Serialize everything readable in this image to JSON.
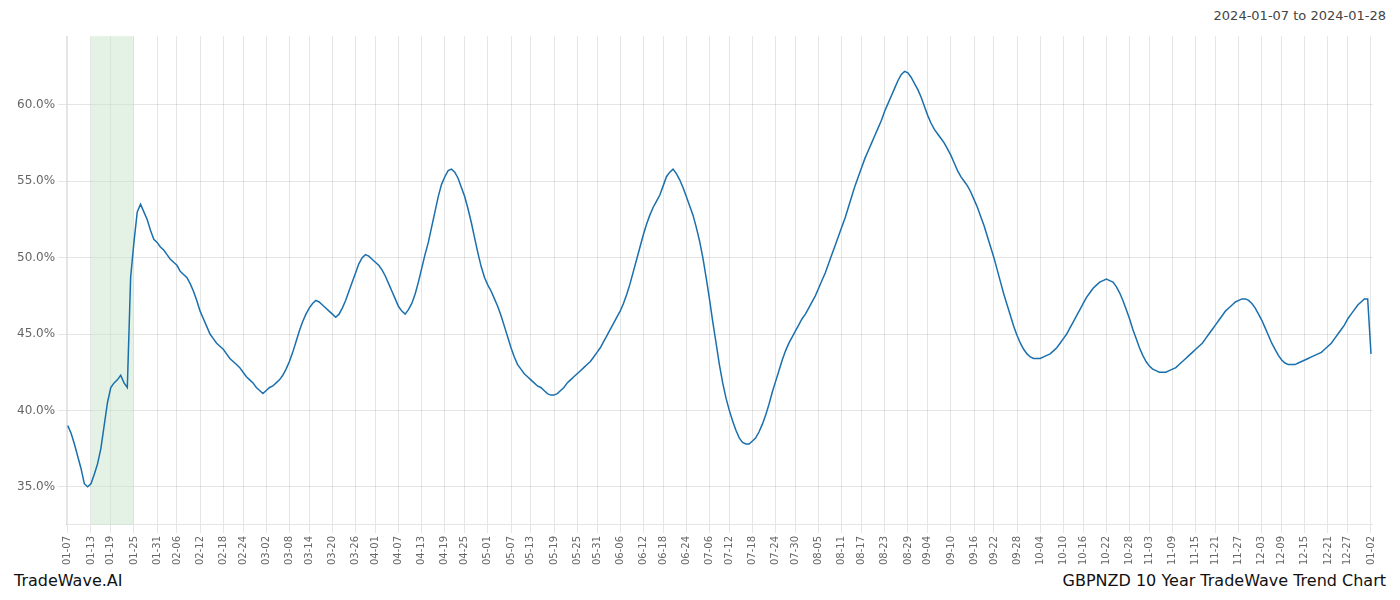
{
  "chart_data": {
    "type": "line",
    "title": "GBPNZD 10 Year TradeWave Trend Chart",
    "subtitle": "2024-01-07 to 2024-01-28",
    "annotations": [
      {
        "text": "TradeWave.AI"
      }
    ],
    "color": "#1a6fad",
    "grid": true,
    "shade": {
      "from": "01-13",
      "to": "01-25",
      "color": "#c8e6c9"
    },
    "ylim": [
      0.325,
      0.645
    ],
    "yticks": [
      {
        "value": 0.35,
        "label": "35.0%"
      },
      {
        "value": 0.4,
        "label": "40.0%"
      },
      {
        "value": 0.45,
        "label": "45.0%"
      },
      {
        "value": 0.5,
        "label": "50.0%"
      },
      {
        "value": 0.55,
        "label": "55.0%"
      },
      {
        "value": 0.6,
        "label": "60.0%"
      }
    ],
    "categories": [
      "01-07",
      null,
      null,
      null,
      null,
      null,
      null,
      "01-13",
      null,
      null,
      null,
      null,
      null,
      "01-19",
      null,
      null,
      null,
      null,
      null,
      null,
      "01-25",
      null,
      null,
      null,
      null,
      null,
      null,
      "01-31",
      null,
      null,
      null,
      null,
      null,
      "02-06",
      null,
      null,
      null,
      null,
      null,
      null,
      "02-12",
      null,
      null,
      null,
      null,
      null,
      null,
      "02-18",
      null,
      null,
      null,
      null,
      null,
      "02-24",
      null,
      null,
      null,
      null,
      null,
      null,
      "03-02",
      null,
      null,
      null,
      null,
      null,
      null,
      "03-08",
      null,
      null,
      null,
      null,
      null,
      "03-14",
      null,
      null,
      null,
      null,
      null,
      null,
      "03-20",
      null,
      null,
      null,
      null,
      null,
      null,
      "03-26",
      null,
      null,
      null,
      null,
      null,
      "04-01",
      null,
      null,
      null,
      null,
      null,
      null,
      "04-07",
      null,
      null,
      null,
      null,
      null,
      null,
      "04-13",
      null,
      null,
      null,
      null,
      null,
      null,
      "04-19",
      null,
      null,
      null,
      null,
      null,
      "04-25",
      null,
      null,
      null,
      null,
      null,
      null,
      "05-01",
      null,
      null,
      null,
      null,
      null,
      null,
      "05-07",
      null,
      null,
      null,
      null,
      null,
      "05-13",
      null,
      null,
      null,
      null,
      null,
      null,
      "05-19",
      null,
      null,
      null,
      null,
      null,
      null,
      "05-25",
      null,
      null,
      null,
      null,
      null,
      "05-31",
      null,
      null,
      null,
      null,
      null,
      null,
      "06-06",
      null,
      null,
      null,
      null,
      null,
      null,
      "06-12",
      null,
      null,
      null,
      null,
      null,
      "06-18",
      null,
      null,
      null,
      null,
      null,
      null,
      "06-24",
      null,
      null,
      null,
      null,
      null,
      null,
      "07-06",
      null,
      null,
      null,
      null,
      null,
      "07-12",
      null,
      null,
      null,
      null,
      null,
      null,
      "07-18",
      null,
      null,
      null,
      null,
      null,
      null,
      "07-24",
      null,
      null,
      null,
      null,
      null,
      "07-30",
      null,
      null,
      null,
      null,
      null,
      null,
      "08-05",
      null,
      null,
      null,
      null,
      null,
      null,
      "08-11",
      null,
      null,
      null,
      null,
      null,
      "08-17",
      null,
      null,
      null,
      null,
      null,
      null,
      "08-23",
      null,
      null,
      null,
      null,
      null,
      null,
      "08-29",
      null,
      null,
      null,
      null,
      null,
      "09-04",
      null,
      null,
      null,
      null,
      null,
      null,
      "09-10",
      null,
      null,
      null,
      null,
      null,
      null,
      "09-16",
      null,
      null,
      null,
      null,
      null,
      "09-22",
      null,
      null,
      null,
      null,
      null,
      null,
      "09-28",
      null,
      null,
      null,
      null,
      null,
      null,
      "10-04",
      null,
      null,
      null,
      null,
      null,
      null,
      "10-10",
      null,
      null,
      null,
      null,
      null,
      "10-16",
      null,
      null,
      null,
      null,
      null,
      null,
      "10-22",
      null,
      null,
      null,
      null,
      null,
      null,
      "10-28",
      null,
      null,
      null,
      null,
      null,
      "11-03",
      null,
      null,
      null,
      null,
      null,
      null,
      "11-09",
      null,
      null,
      null,
      null,
      null,
      null,
      "11-15",
      null,
      null,
      null,
      null,
      null,
      "11-21",
      null,
      null,
      null,
      null,
      null,
      null,
      "11-27",
      null,
      null,
      null,
      null,
      null,
      null,
      "12-03",
      null,
      null,
      null,
      null,
      null,
      "12-09",
      null,
      null,
      null,
      null,
      null,
      null,
      "12-15",
      null,
      null,
      null,
      null,
      null,
      null,
      "12-21",
      null,
      null,
      null,
      null,
      null,
      "12-27",
      null,
      null,
      null,
      null,
      null,
      null,
      "01-02"
    ],
    "values": [
      0.39,
      0.385,
      0.378,
      0.37,
      0.362,
      0.352,
      0.35,
      0.352,
      0.358,
      0.365,
      0.375,
      0.39,
      0.405,
      0.415,
      0.418,
      0.42,
      0.423,
      0.418,
      0.415,
      0.487,
      0.51,
      0.53,
      0.535,
      0.53,
      0.525,
      0.518,
      0.512,
      0.51,
      0.507,
      0.505,
      0.502,
      0.499,
      0.497,
      0.495,
      0.491,
      0.489,
      0.487,
      0.483,
      0.478,
      0.472,
      0.465,
      0.46,
      0.455,
      0.45,
      0.447,
      0.444,
      0.442,
      0.44,
      0.437,
      0.434,
      0.432,
      0.43,
      0.428,
      0.425,
      0.422,
      0.42,
      0.418,
      0.415,
      0.413,
      0.411,
      0.413,
      0.415,
      0.416,
      0.418,
      0.42,
      0.423,
      0.427,
      0.432,
      0.438,
      0.445,
      0.452,
      0.458,
      0.463,
      0.467,
      0.47,
      0.472,
      0.471,
      0.469,
      0.467,
      0.465,
      0.463,
      0.461,
      0.463,
      0.467,
      0.472,
      0.478,
      0.484,
      0.49,
      0.496,
      0.5,
      0.502,
      0.501,
      0.499,
      0.497,
      0.495,
      0.492,
      0.488,
      0.483,
      0.478,
      0.473,
      0.468,
      0.465,
      0.463,
      0.466,
      0.47,
      0.476,
      0.484,
      0.493,
      0.502,
      0.51,
      0.52,
      0.53,
      0.54,
      0.548,
      0.553,
      0.557,
      0.558,
      0.556,
      0.552,
      0.546,
      0.54,
      0.532,
      0.523,
      0.513,
      0.503,
      0.494,
      0.487,
      0.482,
      0.478,
      0.473,
      0.468,
      0.462,
      0.455,
      0.448,
      0.441,
      0.435,
      0.43,
      0.427,
      0.424,
      0.422,
      0.42,
      0.418,
      0.416,
      0.415,
      0.413,
      0.411,
      0.41,
      0.41,
      0.411,
      0.413,
      0.415,
      0.418,
      0.42,
      0.422,
      0.424,
      0.426,
      0.428,
      0.43,
      0.432,
      0.435,
      0.438,
      0.441,
      0.445,
      0.449,
      0.453,
      0.457,
      0.461,
      0.465,
      0.47,
      0.476,
      0.483,
      0.491,
      0.499,
      0.507,
      0.515,
      0.522,
      0.528,
      0.533,
      0.537,
      0.541,
      0.547,
      0.553,
      0.556,
      0.558,
      0.555,
      0.551,
      0.546,
      0.54,
      0.534,
      0.528,
      0.52,
      0.511,
      0.5,
      0.487,
      0.473,
      0.458,
      0.444,
      0.43,
      0.418,
      0.408,
      0.4,
      0.393,
      0.387,
      0.382,
      0.379,
      0.378,
      0.378,
      0.38,
      0.382,
      0.386,
      0.391,
      0.397,
      0.404,
      0.412,
      0.419,
      0.426,
      0.433,
      0.439,
      0.444,
      0.448,
      0.452,
      0.456,
      0.46,
      0.463,
      0.467,
      0.471,
      0.475,
      0.48,
      0.485,
      0.49,
      0.496,
      0.502,
      0.508,
      0.514,
      0.52,
      0.526,
      0.533,
      0.54,
      0.547,
      0.553,
      0.559,
      0.565,
      0.57,
      0.575,
      0.58,
      0.585,
      0.59,
      0.596,
      0.601,
      0.606,
      0.611,
      0.616,
      0.62,
      0.622,
      0.621,
      0.618,
      0.614,
      0.61,
      0.605,
      0.599,
      0.593,
      0.588,
      0.584,
      0.581,
      0.578,
      0.575,
      0.571,
      0.567,
      0.562,
      0.557,
      0.553,
      0.55,
      0.547,
      0.543,
      0.538,
      0.533,
      0.527,
      0.521,
      0.514,
      0.507,
      0.5,
      0.492,
      0.484,
      0.476,
      0.469,
      0.462,
      0.455,
      0.449,
      0.444,
      0.44,
      0.437,
      0.435,
      0.434,
      0.434,
      0.434,
      0.435,
      0.436,
      0.437,
      0.439,
      0.441,
      0.444,
      0.447,
      0.45,
      0.454,
      0.458,
      0.462,
      0.466,
      0.47,
      0.474,
      0.477,
      0.48,
      0.482,
      0.484,
      0.485,
      0.486,
      0.485,
      0.484,
      0.481,
      0.477,
      0.472,
      0.466,
      0.46,
      0.453,
      0.447,
      0.441,
      0.436,
      0.432,
      0.429,
      0.427,
      0.426,
      0.425,
      0.425,
      0.425,
      0.426,
      0.427,
      0.428,
      0.43,
      0.432,
      0.434,
      0.436,
      0.438,
      0.44,
      0.442,
      0.444,
      0.447,
      0.45,
      0.453,
      0.456,
      0.459,
      0.462,
      0.465,
      0.467,
      0.469,
      0.471,
      0.472,
      0.473,
      0.473,
      0.472,
      0.47,
      0.467,
      0.463,
      0.459,
      0.454,
      0.449,
      0.444,
      0.44,
      0.436,
      0.433,
      0.431,
      0.43,
      0.43,
      0.43,
      0.431,
      0.432,
      0.433,
      0.434,
      0.435,
      0.436,
      0.437,
      0.438,
      0.44,
      0.442,
      0.444,
      0.447,
      0.45,
      0.453,
      0.456,
      0.46,
      0.463,
      0.466,
      0.469,
      0.471,
      0.473,
      0.473,
      0.437
    ]
  }
}
